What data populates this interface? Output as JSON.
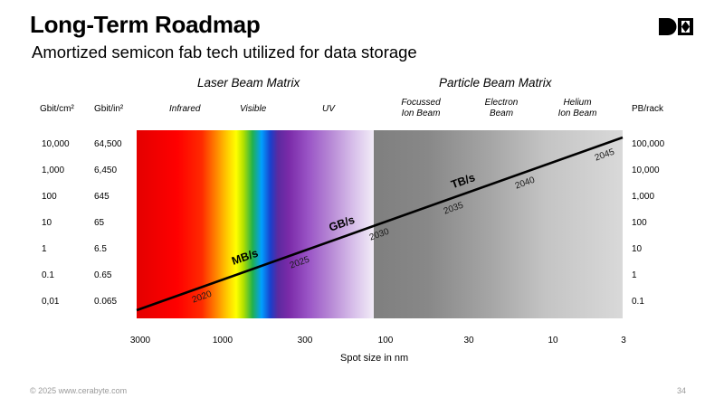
{
  "header": {
    "title": "Long-Term Roadmap",
    "subtitle": "Amortized semicon fab tech utilized for data storage"
  },
  "logo": {
    "icon": "cerabyte-logo-icon",
    "color": "#000000"
  },
  "sections": {
    "laser": "Laser Beam Matrix",
    "particle": "Particle Beam Matrix"
  },
  "columns": {
    "infrared": "Infrared",
    "visible": "Visible",
    "uv": "UV",
    "focussed_line1": "Focussed",
    "focussed_line2": "Ion Beam",
    "electron_line1": "Electron",
    "electron_line2": "Beam",
    "helium_line1": "Helium",
    "helium_line2": "Ion Beam"
  },
  "axes": {
    "left1_title": "Gbit/cm²",
    "left2_title": "Gbit/in²",
    "right_title": "PB/rack",
    "left1_ticks": [
      "10,000",
      "1,000",
      "100",
      "10",
      "1",
      "0.1",
      "0,01"
    ],
    "left2_ticks": [
      "64,500",
      "6,450",
      "645",
      "65",
      "6.5",
      "0.65",
      "0.065"
    ],
    "right_ticks": [
      "100,000",
      "10,000",
      "1,000",
      "100",
      "10",
      "1",
      "0.1"
    ],
    "x_ticks": [
      "3000",
      "1000",
      "300",
      "100",
      "30",
      "10",
      "3"
    ],
    "x_label": "Spot size in nm"
  },
  "line_labels": {
    "y2020": "2020",
    "y2025": "2025",
    "y2030": "2030",
    "y2035": "2035",
    "y2040": "2040",
    "y2045": "2045",
    "mbs": "MB/s",
    "gbs": "GB/s",
    "tbs": "TB/s"
  },
  "colors": {
    "line": "#000000",
    "footer_text": "#9a9a9a"
  },
  "footer": {
    "copyright": "© 2025 www.cerabyte.com",
    "page": "34"
  }
}
